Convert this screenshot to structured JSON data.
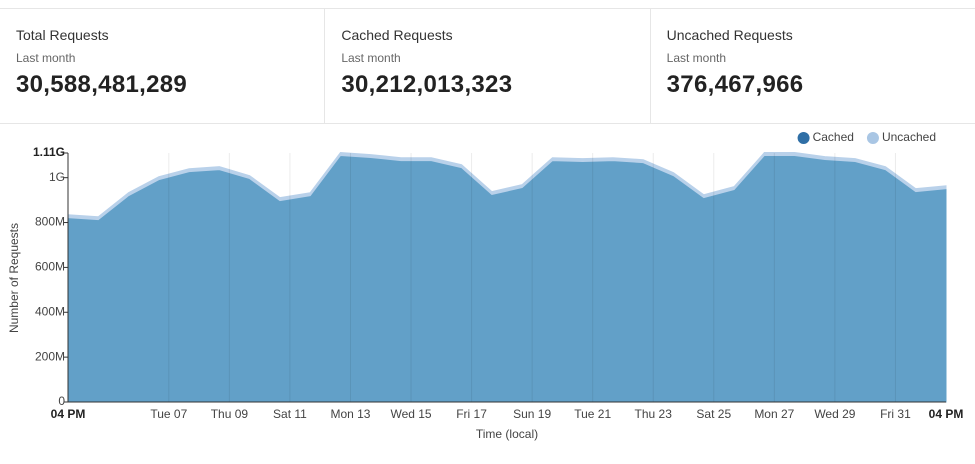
{
  "stats": [
    {
      "title": "Total Requests",
      "period": "Last month",
      "value": "30,588,481,289"
    },
    {
      "title": "Cached Requests",
      "period": "Last month",
      "value": "30,212,013,323"
    },
    {
      "title": "Uncached Requests",
      "period": "Last month",
      "value": "376,467,966"
    }
  ],
  "chart_data": {
    "type": "area",
    "stacked": true,
    "x_label": "Time (local)",
    "y_label": "Number of Requests",
    "x": [
      0,
      1,
      2,
      3,
      4,
      5,
      6,
      7,
      8,
      9,
      10,
      11,
      12,
      13,
      14,
      15,
      16,
      17,
      18,
      19,
      20,
      21,
      22,
      23,
      24,
      25,
      26,
      27,
      28,
      29
    ],
    "series": [
      {
        "name": "Cached",
        "color": "#2f6fa6",
        "fill": "#62a0c8",
        "values": [
          822000000,
          813000000,
          920000000,
          991000000,
          1027000000,
          1036000000,
          996000000,
          898000000,
          920000000,
          1099000000,
          1090000000,
          1076000000,
          1076000000,
          1045000000,
          925000000,
          956000000,
          1076000000,
          1072000000,
          1076000000,
          1067000000,
          1009000000,
          911000000,
          947000000,
          1099000000,
          1099000000,
          1081000000,
          1072000000,
          1036000000,
          938000000,
          951000000
        ]
      },
      {
        "name": "Uncached",
        "color": "#a9c6e4",
        "fill": "#b9d1ea",
        "values": [
          13000000,
          13000000,
          13000000,
          13000000,
          13000000,
          13000000,
          13000000,
          13000000,
          13000000,
          13000000,
          13000000,
          13000000,
          13000000,
          13000000,
          13000000,
          13000000,
          13000000,
          13000000,
          13000000,
          13000000,
          13000000,
          13000000,
          13000000,
          13000000,
          13000000,
          13000000,
          13000000,
          13000000,
          13000000,
          13000000
        ]
      }
    ],
    "xlim": [
      0,
      29
    ],
    "xticks": [
      {
        "value": 0,
        "label": "04 PM"
      },
      {
        "value": 3.33,
        "label": "Tue 07"
      },
      {
        "value": 5.33,
        "label": "Thu 09"
      },
      {
        "value": 7.33,
        "label": "Sat 11"
      },
      {
        "value": 9.33,
        "label": "Mon 13"
      },
      {
        "value": 11.33,
        "label": "Wed 15"
      },
      {
        "value": 13.33,
        "label": "Fri 17"
      },
      {
        "value": 15.33,
        "label": "Sun 19"
      },
      {
        "value": 17.33,
        "label": "Tue 21"
      },
      {
        "value": 19.33,
        "label": "Thu 23"
      },
      {
        "value": 21.33,
        "label": "Sat 25"
      },
      {
        "value": 23.33,
        "label": "Mon 27"
      },
      {
        "value": 25.33,
        "label": "Wed 29"
      },
      {
        "value": 27.33,
        "label": "Fri 31"
      },
      {
        "value": 29,
        "label": "04 PM"
      }
    ],
    "ylim": [
      0,
      1110000000
    ],
    "yticks": [
      0,
      {
        "value": 200000000,
        "label": "200M"
      },
      {
        "value": 400000000,
        "label": "400M"
      },
      {
        "value": 600000000,
        "label": "600M"
      },
      {
        "value": 800000000,
        "label": "800M"
      },
      {
        "value": 1000000000,
        "label": "1G"
      },
      {
        "value": 1110000000,
        "label": "1.11G"
      }
    ],
    "grid": "x",
    "legend": "top-right"
  }
}
